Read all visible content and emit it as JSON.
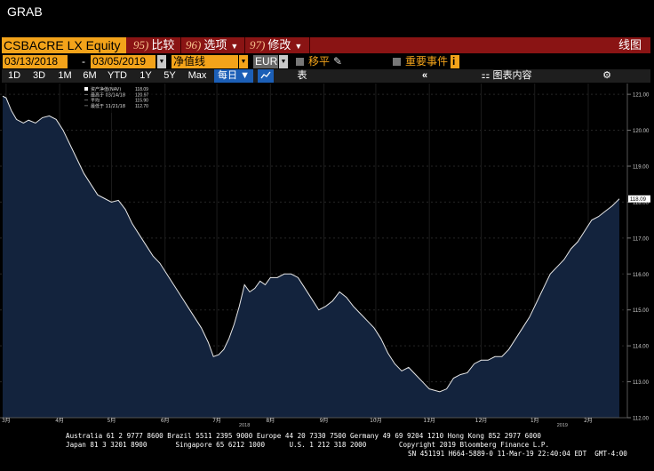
{
  "window": {
    "title": "GRAB"
  },
  "header": {
    "ticker": "CSBACRE LX Equity",
    "menus": [
      {
        "num": "95)",
        "label": "比较"
      },
      {
        "num": "96)",
        "label": "选项"
      },
      {
        "num": "97)",
        "label": "修改"
      }
    ],
    "right_title": "线图"
  },
  "controls": {
    "start_date": "03/13/2018",
    "dash": "-",
    "end_date": "03/05/2019",
    "mode": "净值线",
    "currency": "EUR",
    "shift_label": "移平",
    "events_label": "重要事件",
    "events_info": "i"
  },
  "toolbar": {
    "ranges": [
      "1D",
      "3D",
      "1M",
      "6M",
      "YTD",
      "1Y",
      "5Y",
      "Max"
    ],
    "period": "每日",
    "table_label": "表",
    "collapse_icon": "«",
    "chart_content": "图表内容",
    "gear_icon": "⚙"
  },
  "legend": {
    "rows": [
      {
        "label": "资产净值(NAV)",
        "value": "118.09"
      },
      {
        "label": "最高于 03/14/18",
        "value": "120.97"
      },
      {
        "label": "平均",
        "value": "115.90"
      },
      {
        "label": "最低于 11/21/18",
        "value": "112.70"
      }
    ]
  },
  "chart_data": {
    "type": "area",
    "title": "",
    "xlabel": "",
    "ylabel": "",
    "ylim": [
      112.0,
      121.3
    ],
    "yticks": [
      112,
      113,
      114,
      115,
      116,
      117,
      118,
      119,
      120,
      121
    ],
    "ytick_labels": [
      "112.00",
      "113.00",
      "114.00",
      "115.00",
      "116.00",
      "117.00",
      "118.00",
      "119.00",
      "120.00",
      "121.00"
    ],
    "x_range": [
      "2018-03-13",
      "2019-03-05"
    ],
    "month_ticks": [
      {
        "date": "2018-03-15",
        "label": "3月"
      },
      {
        "date": "2018-04-15",
        "label": "4月"
      },
      {
        "date": "2018-05-15",
        "label": "5月"
      },
      {
        "date": "2018-06-15",
        "label": "6月"
      },
      {
        "date": "2018-07-15",
        "label": "7月"
      },
      {
        "date": "2018-08-15",
        "label": "8月"
      },
      {
        "date": "2018-09-15",
        "label": "9月"
      },
      {
        "date": "2018-10-15",
        "label": "10月"
      },
      {
        "date": "2018-11-15",
        "label": "11月"
      },
      {
        "date": "2018-12-15",
        "label": "12月"
      },
      {
        "date": "2019-01-15",
        "label": "1月"
      },
      {
        "date": "2019-02-15",
        "label": "2月"
      }
    ],
    "year_ticks": [
      {
        "date": "2018-07-31",
        "label": "2018"
      },
      {
        "date": "2019-01-31",
        "label": "2019"
      }
    ],
    "last_value_label": "118.09",
    "series": [
      {
        "name": "资产净值(NAV)",
        "color": "#ffffff",
        "fill": "#13233d",
        "points": [
          [
            "2018-03-13",
            120.95
          ],
          [
            "2018-03-15",
            120.9
          ],
          [
            "2018-03-18",
            120.55
          ],
          [
            "2018-03-21",
            120.3
          ],
          [
            "2018-03-25",
            120.2
          ],
          [
            "2018-03-28",
            120.28
          ],
          [
            "2018-04-01",
            120.2
          ],
          [
            "2018-04-05",
            120.35
          ],
          [
            "2018-04-09",
            120.4
          ],
          [
            "2018-04-13",
            120.3
          ],
          [
            "2018-04-17",
            120.0
          ],
          [
            "2018-04-21",
            119.6
          ],
          [
            "2018-04-25",
            119.2
          ],
          [
            "2018-04-29",
            118.8
          ],
          [
            "2018-05-03",
            118.5
          ],
          [
            "2018-05-07",
            118.2
          ],
          [
            "2018-05-11",
            118.1
          ],
          [
            "2018-05-15",
            118.0
          ],
          [
            "2018-05-19",
            118.05
          ],
          [
            "2018-05-23",
            117.8
          ],
          [
            "2018-05-27",
            117.4
          ],
          [
            "2018-05-31",
            117.1
          ],
          [
            "2018-06-04",
            116.8
          ],
          [
            "2018-06-08",
            116.5
          ],
          [
            "2018-06-12",
            116.3
          ],
          [
            "2018-06-16",
            116.0
          ],
          [
            "2018-06-20",
            115.7
          ],
          [
            "2018-06-24",
            115.4
          ],
          [
            "2018-06-28",
            115.1
          ],
          [
            "2018-07-02",
            114.8
          ],
          [
            "2018-07-06",
            114.5
          ],
          [
            "2018-07-10",
            114.1
          ],
          [
            "2018-07-13",
            113.7
          ],
          [
            "2018-07-16",
            113.75
          ],
          [
            "2018-07-19",
            113.9
          ],
          [
            "2018-07-22",
            114.2
          ],
          [
            "2018-07-25",
            114.6
          ],
          [
            "2018-07-28",
            115.1
          ],
          [
            "2018-07-31",
            115.7
          ],
          [
            "2018-08-03",
            115.5
          ],
          [
            "2018-08-06",
            115.6
          ],
          [
            "2018-08-09",
            115.8
          ],
          [
            "2018-08-12",
            115.7
          ],
          [
            "2018-08-15",
            115.9
          ],
          [
            "2018-08-19",
            115.9
          ],
          [
            "2018-08-23",
            116.0
          ],
          [
            "2018-08-27",
            116.0
          ],
          [
            "2018-08-31",
            115.9
          ],
          [
            "2018-09-04",
            115.6
          ],
          [
            "2018-09-08",
            115.3
          ],
          [
            "2018-09-12",
            115.0
          ],
          [
            "2018-09-16",
            115.1
          ],
          [
            "2018-09-20",
            115.25
          ],
          [
            "2018-09-24",
            115.5
          ],
          [
            "2018-09-28",
            115.35
          ],
          [
            "2018-10-02",
            115.1
          ],
          [
            "2018-10-06",
            114.9
          ],
          [
            "2018-10-10",
            114.7
          ],
          [
            "2018-10-14",
            114.5
          ],
          [
            "2018-10-18",
            114.2
          ],
          [
            "2018-10-22",
            113.8
          ],
          [
            "2018-10-26",
            113.5
          ],
          [
            "2018-10-30",
            113.3
          ],
          [
            "2018-11-03",
            113.4
          ],
          [
            "2018-11-07",
            113.2
          ],
          [
            "2018-11-11",
            113.0
          ],
          [
            "2018-11-15",
            112.8
          ],
          [
            "2018-11-21",
            112.72
          ],
          [
            "2018-11-25",
            112.8
          ],
          [
            "2018-11-29",
            113.1
          ],
          [
            "2018-12-03",
            113.2
          ],
          [
            "2018-12-07",
            113.25
          ],
          [
            "2018-12-11",
            113.5
          ],
          [
            "2018-12-15",
            113.6
          ],
          [
            "2018-12-19",
            113.6
          ],
          [
            "2018-12-23",
            113.7
          ],
          [
            "2018-12-27",
            113.7
          ],
          [
            "2018-12-31",
            113.9
          ],
          [
            "2019-01-04",
            114.2
          ],
          [
            "2019-01-08",
            114.5
          ],
          [
            "2019-01-12",
            114.8
          ],
          [
            "2019-01-16",
            115.2
          ],
          [
            "2019-01-20",
            115.6
          ],
          [
            "2019-01-24",
            116.0
          ],
          [
            "2019-01-28",
            116.2
          ],
          [
            "2019-02-01",
            116.4
          ],
          [
            "2019-02-05",
            116.7
          ],
          [
            "2019-02-09",
            116.9
          ],
          [
            "2019-02-13",
            117.2
          ],
          [
            "2019-02-17",
            117.5
          ],
          [
            "2019-02-21",
            117.6
          ],
          [
            "2019-02-25",
            117.75
          ],
          [
            "2019-03-01",
            117.9
          ],
          [
            "2019-03-05",
            118.09
          ]
        ]
      }
    ]
  },
  "footer": {
    "line1": "Australia 61 2 9777 8600 Brazil 5511 2395 9000 Europe 44 20 7330 7500 Germany 49 69 9204 1210 Hong Kong 852 2977 6000",
    "line2": "Japan 81 3 3201 8900       Singapore 65 6212 1000      U.S. 1 212 318 2000        Copyright 2019 Bloomberg Finance L.P.",
    "line3": "SN 451191 H664-5889-0 11-Mar-19 22:40:04 EDT  GMT-4:00"
  }
}
